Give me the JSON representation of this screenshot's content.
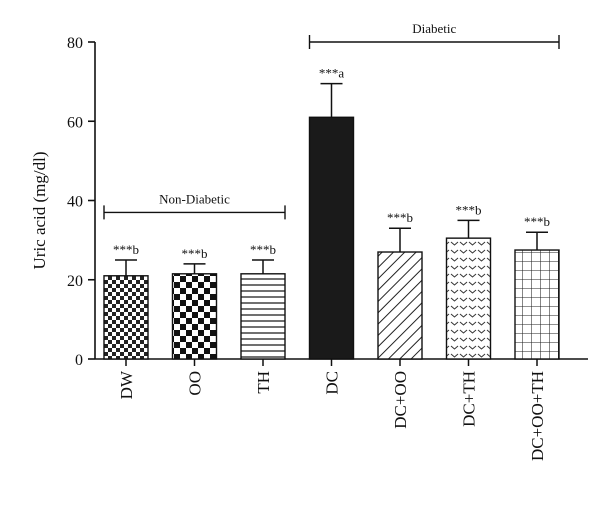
{
  "chart_data": {
    "type": "bar",
    "ylabel": "Uric acid (mg/dl)",
    "xlabel": "",
    "ylim": [
      0,
      80
    ],
    "yticks": [
      "0",
      "20",
      "40",
      "60",
      "80"
    ],
    "categories": [
      "DW",
      "OO",
      "TH",
      "DC",
      "DC+OO",
      "DC+TH",
      "DC+OO+TH"
    ],
    "values": [
      21,
      21.5,
      21.5,
      61,
      27,
      30.5,
      27.5
    ],
    "errors": [
      4,
      2.5,
      3.5,
      8.5,
      6,
      4.5,
      4.5
    ],
    "annotations": [
      "***b",
      "***b",
      "***b",
      "***a",
      "***b",
      "***b",
      "***b"
    ],
    "fill_patterns": [
      "small-check",
      "large-check",
      "horizontal-lines",
      "solid-black",
      "diagonal-lines",
      "chevron-dots",
      "grid"
    ],
    "groups": [
      {
        "label": "Non-Diabetic",
        "from": 0,
        "to": 2,
        "level": 37
      },
      {
        "label": "Diabetic",
        "from": 3,
        "to": 6,
        "level": 80
      }
    ]
  }
}
